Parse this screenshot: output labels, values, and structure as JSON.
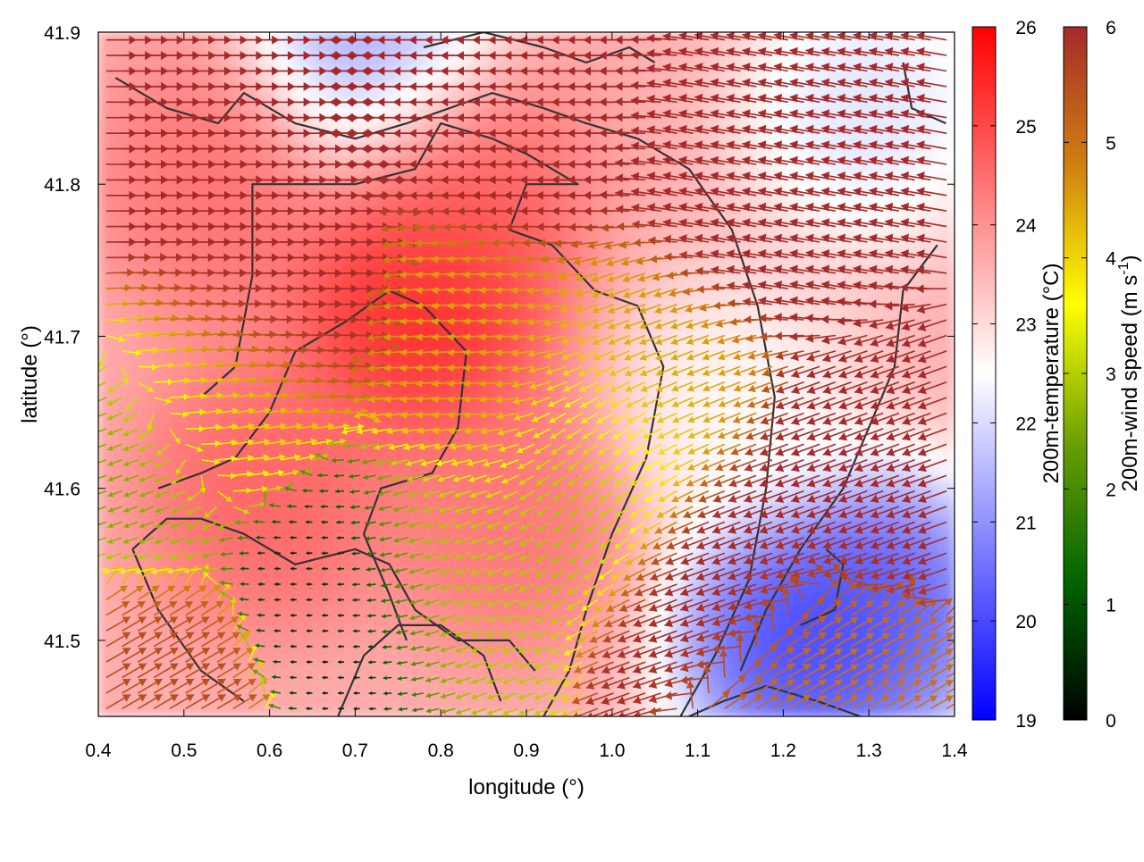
{
  "chart_data": {
    "type": "heatmap",
    "xlabel": "longitude (°)",
    "ylabel": "latitude (°)",
    "xlim": [
      0.4,
      1.4
    ],
    "ylim": [
      41.45,
      41.9
    ],
    "xticks": [
      "0.4",
      "0.5",
      "0.6",
      "0.7",
      "0.8",
      "0.9",
      "1.0",
      "1.1",
      "1.2",
      "1.3",
      "1.4"
    ],
    "yticks": [
      "41.5",
      "41.6",
      "41.7",
      "41.8",
      "41.9"
    ],
    "grid": false,
    "colorbars": [
      {
        "label": "200m-temperature (°C)",
        "range": [
          19,
          26
        ],
        "ticks": [
          "19",
          "20",
          "21",
          "22",
          "23",
          "24",
          "25",
          "26"
        ],
        "colors": [
          "#0000ff",
          "#ffffff",
          "#ff0000"
        ]
      },
      {
        "label_main": "200m-wind speed (m s",
        "label_sup": "-1",
        "label_end": ")",
        "range": [
          0,
          6
        ],
        "ticks": [
          "0",
          "1",
          "2",
          "3",
          "4",
          "5",
          "6"
        ],
        "colors": [
          "#000000",
          "#006400",
          "#6aa000",
          "#ffff00",
          "#d08010",
          "#a52a2a"
        ]
      }
    ],
    "temperature_field": {
      "note_values": "approximate 200m temperature (°C) at [lon, lat] sample points",
      "base": 23.6,
      "hotspots": [
        {
          "lon": 0.78,
          "lat": 41.72,
          "value": 25.8
        },
        {
          "lon": 0.82,
          "lat": 41.8,
          "value": 24.8
        },
        {
          "lon": 0.55,
          "lat": 41.8,
          "value": 24.6
        },
        {
          "lon": 0.6,
          "lat": 41.6,
          "value": 24.8
        },
        {
          "lon": 0.88,
          "lat": 41.58,
          "value": 24.5
        },
        {
          "lon": 1.22,
          "lat": 41.5,
          "value": 19.4
        },
        {
          "lon": 1.32,
          "lat": 41.52,
          "value": 19.8
        },
        {
          "lon": 0.72,
          "lat": 41.89,
          "value": 20.8
        },
        {
          "lon": 1.3,
          "lat": 41.85,
          "value": 21.8
        },
        {
          "lon": 1.15,
          "lat": 41.65,
          "value": 22.4
        }
      ]
    },
    "wind_field": {
      "note_values": "approximate 200m wind at [lon, lat]: speed m/s, direction = bearing the arrows point (deg, 0=east, counter-clockwise)",
      "samples": [
        {
          "lon": 0.5,
          "lat": 41.85,
          "speed": 6.0,
          "dir": 0
        },
        {
          "lon": 0.9,
          "lat": 41.85,
          "speed": 6.0,
          "dir": 180
        },
        {
          "lon": 1.2,
          "lat": 41.8,
          "speed": 6.0,
          "dir": 170
        },
        {
          "lon": 0.6,
          "lat": 41.72,
          "speed": 6.0,
          "dir": 0
        },
        {
          "lon": 0.85,
          "lat": 41.68,
          "speed": 4.5,
          "dir": 185
        },
        {
          "lon": 0.55,
          "lat": 41.65,
          "speed": 4.0,
          "dir": 10
        },
        {
          "lon": 0.45,
          "lat": 41.6,
          "speed": 2.5,
          "dir": 200
        },
        {
          "lon": 0.68,
          "lat": 41.54,
          "speed": 0.5,
          "dir": 180
        },
        {
          "lon": 0.8,
          "lat": 41.56,
          "speed": 3.0,
          "dir": 200
        },
        {
          "lon": 1.0,
          "lat": 41.62,
          "speed": 2.8,
          "dir": 220
        },
        {
          "lon": 1.05,
          "lat": 41.66,
          "speed": 4.5,
          "dir": 200
        },
        {
          "lon": 1.15,
          "lat": 41.55,
          "speed": 6.0,
          "dir": 200
        },
        {
          "lon": 1.3,
          "lat": 41.6,
          "speed": 6.0,
          "dir": 200
        },
        {
          "lon": 1.25,
          "lat": 41.48,
          "speed": 5.0,
          "dir": 30
        },
        {
          "lon": 0.45,
          "lat": 41.48,
          "speed": 5.5,
          "dir": 30
        }
      ]
    },
    "contours": [
      [
        [
          0.42,
          41.87
        ],
        [
          0.48,
          41.85
        ],
        [
          0.54,
          41.84
        ],
        [
          0.57,
          41.86
        ],
        [
          0.63,
          41.84
        ],
        [
          0.7,
          41.83
        ],
        [
          0.76,
          41.84
        ],
        [
          0.81,
          41.85
        ],
        [
          0.86,
          41.86
        ],
        [
          0.92,
          41.85
        ],
        [
          0.97,
          41.84
        ],
        [
          1.03,
          41.83
        ],
        [
          1.09,
          41.81
        ],
        [
          1.14,
          41.77
        ],
        [
          1.17,
          41.72
        ],
        [
          1.19,
          41.66
        ],
        [
          1.18,
          41.6
        ],
        [
          1.16,
          41.54
        ],
        [
          1.12,
          41.49
        ],
        [
          1.08,
          41.45
        ]
      ],
      [
        [
          0.52,
          41.66
        ],
        [
          0.56,
          41.68
        ],
        [
          0.58,
          41.74
        ],
        [
          0.58,
          41.8
        ],
        [
          0.63,
          41.8
        ],
        [
          0.7,
          41.8
        ],
        [
          0.77,
          41.81
        ],
        [
          0.8,
          41.84
        ],
        [
          0.86,
          41.83
        ],
        [
          0.9,
          41.82
        ],
        [
          0.96,
          41.8
        ],
        [
          0.9,
          41.8
        ],
        [
          0.88,
          41.77
        ],
        [
          0.93,
          41.76
        ],
        [
          0.98,
          41.73
        ],
        [
          1.03,
          41.72
        ],
        [
          1.06,
          41.68
        ],
        [
          1.04,
          41.62
        ],
        [
          1.0,
          41.57
        ],
        [
          0.97,
          41.52
        ],
        [
          0.95,
          41.48
        ],
        [
          0.92,
          41.45
        ]
      ],
      [
        [
          0.47,
          41.6
        ],
        [
          0.52,
          41.61
        ],
        [
          0.56,
          41.62
        ],
        [
          0.6,
          41.65
        ],
        [
          0.63,
          41.69
        ],
        [
          0.69,
          41.71
        ],
        [
          0.74,
          41.73
        ],
        [
          0.78,
          41.72
        ],
        [
          0.83,
          41.69
        ],
        [
          0.82,
          41.64
        ],
        [
          0.79,
          41.61
        ],
        [
          0.73,
          41.6
        ],
        [
          0.71,
          41.57
        ],
        [
          0.74,
          41.53
        ],
        [
          0.76,
          41.5
        ]
      ],
      [
        [
          0.44,
          41.56
        ],
        [
          0.48,
          41.58
        ],
        [
          0.52,
          41.58
        ],
        [
          0.57,
          41.57
        ],
        [
          0.63,
          41.55
        ],
        [
          0.7,
          41.56
        ],
        [
          0.74,
          41.55
        ],
        [
          0.77,
          41.52
        ],
        [
          0.82,
          41.5
        ],
        [
          0.88,
          41.5
        ],
        [
          0.91,
          41.48
        ]
      ],
      [
        [
          0.44,
          41.56
        ],
        [
          0.47,
          41.52
        ],
        [
          0.52,
          41.48
        ],
        [
          0.57,
          41.46
        ]
      ],
      [
        [
          0.68,
          41.45
        ],
        [
          0.71,
          41.49
        ],
        [
          0.75,
          41.51
        ],
        [
          0.8,
          41.51
        ],
        [
          0.85,
          41.49
        ],
        [
          0.87,
          41.46
        ]
      ],
      [
        [
          1.38,
          41.76
        ],
        [
          1.34,
          41.73
        ],
        [
          1.33,
          41.68
        ],
        [
          1.3,
          41.64
        ],
        [
          1.27,
          41.6
        ],
        [
          1.22,
          41.56
        ],
        [
          1.18,
          41.52
        ],
        [
          1.15,
          41.48
        ]
      ],
      [
        [
          1.22,
          41.51
        ],
        [
          1.26,
          41.52
        ],
        [
          1.27,
          41.55
        ],
        [
          1.25,
          41.56
        ]
      ],
      [
        [
          0.78,
          41.89
        ],
        [
          0.85,
          41.9
        ],
        [
          0.92,
          41.89
        ],
        [
          0.97,
          41.88
        ],
        [
          1.02,
          41.89
        ],
        [
          1.05,
          41.88
        ]
      ],
      [
        [
          1.34,
          41.88
        ],
        [
          1.35,
          41.85
        ],
        [
          1.39,
          41.84
        ]
      ],
      [
        [
          1.09,
          41.45
        ],
        [
          1.13,
          41.46
        ],
        [
          1.18,
          41.47
        ],
        [
          1.24,
          41.46
        ],
        [
          1.29,
          41.45
        ]
      ]
    ]
  }
}
